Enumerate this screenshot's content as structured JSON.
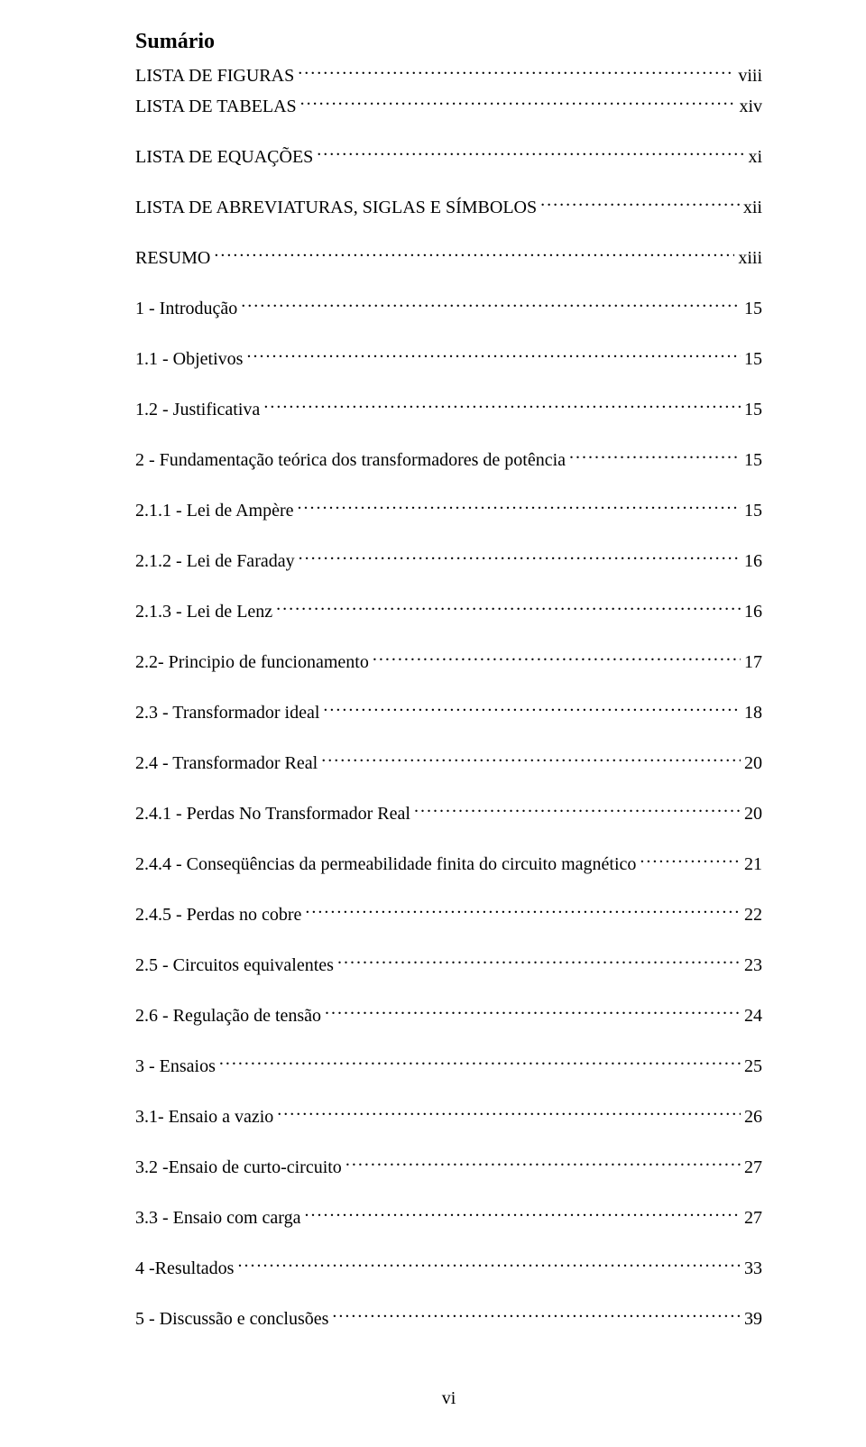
{
  "title": "Sumário",
  "entries": [
    {
      "label": "LISTA DE FIGURAS",
      "page": "viii",
      "tight": true
    },
    {
      "label": "LISTA DE TABELAS",
      "page": "xiv",
      "tight": false
    },
    {
      "label": "LISTA DE EQUAÇÕES",
      "page": "xi",
      "tight": false
    },
    {
      "label": "LISTA DE ABREVIATURAS, SIGLAS E SÍMBOLOS",
      "page": "xii",
      "tight": false
    },
    {
      "label": "RESUMO",
      "page": "xiii",
      "tight": false
    },
    {
      "label": "1 - Introdução",
      "page": "15",
      "tight": false
    },
    {
      "label": "1.1 - Objetivos",
      "page": "15",
      "tight": false
    },
    {
      "label": "1.2 - Justificativa",
      "page": "15",
      "tight": false
    },
    {
      "label": "2 - Fundamentação teórica dos transformadores de potência",
      "page": "15",
      "tight": false
    },
    {
      "label": "2.1.1 - Lei de Ampère",
      "page": "15",
      "tight": false
    },
    {
      "label": "2.1.2 - Lei de Faraday",
      "page": "16",
      "tight": false
    },
    {
      "label": "2.1.3 - Lei de Lenz",
      "page": "16",
      "tight": false
    },
    {
      "label": "2.2- Principio de funcionamento",
      "page": "17",
      "tight": false
    },
    {
      "label": "2.3 - Transformador ideal",
      "page": "18",
      "tight": false
    },
    {
      "label": "2.4 - Transformador Real",
      "page": "20",
      "tight": false
    },
    {
      "label": "2.4.1 - Perdas No Transformador Real",
      "page": "20",
      "tight": false
    },
    {
      "label": "2.4.4 - Conseqüências da permeabilidade finita do circuito magnético",
      "page": "21",
      "tight": false
    },
    {
      "label": "2.4.5 - Perdas no cobre",
      "page": "22",
      "tight": false
    },
    {
      "label": "2.5 - Circuitos equivalentes",
      "page": "23",
      "tight": false
    },
    {
      "label": "2.6 - Regulação de tensão",
      "page": "24",
      "tight": false
    },
    {
      "label": "3 - Ensaios",
      "page": "25",
      "tight": false
    },
    {
      "label": "3.1- Ensaio a vazio",
      "page": "26",
      "tight": false
    },
    {
      "label": "3.2 -Ensaio de curto-circuito",
      "page": "27",
      "tight": false
    },
    {
      "label": "3.3 - Ensaio com carga",
      "page": "27",
      "tight": false
    },
    {
      "label": "4 -Resultados",
      "page": "33",
      "tight": false
    },
    {
      "label": "5 - Discussão e conclusões",
      "page": "39",
      "tight": false
    }
  ],
  "footer": "vi"
}
